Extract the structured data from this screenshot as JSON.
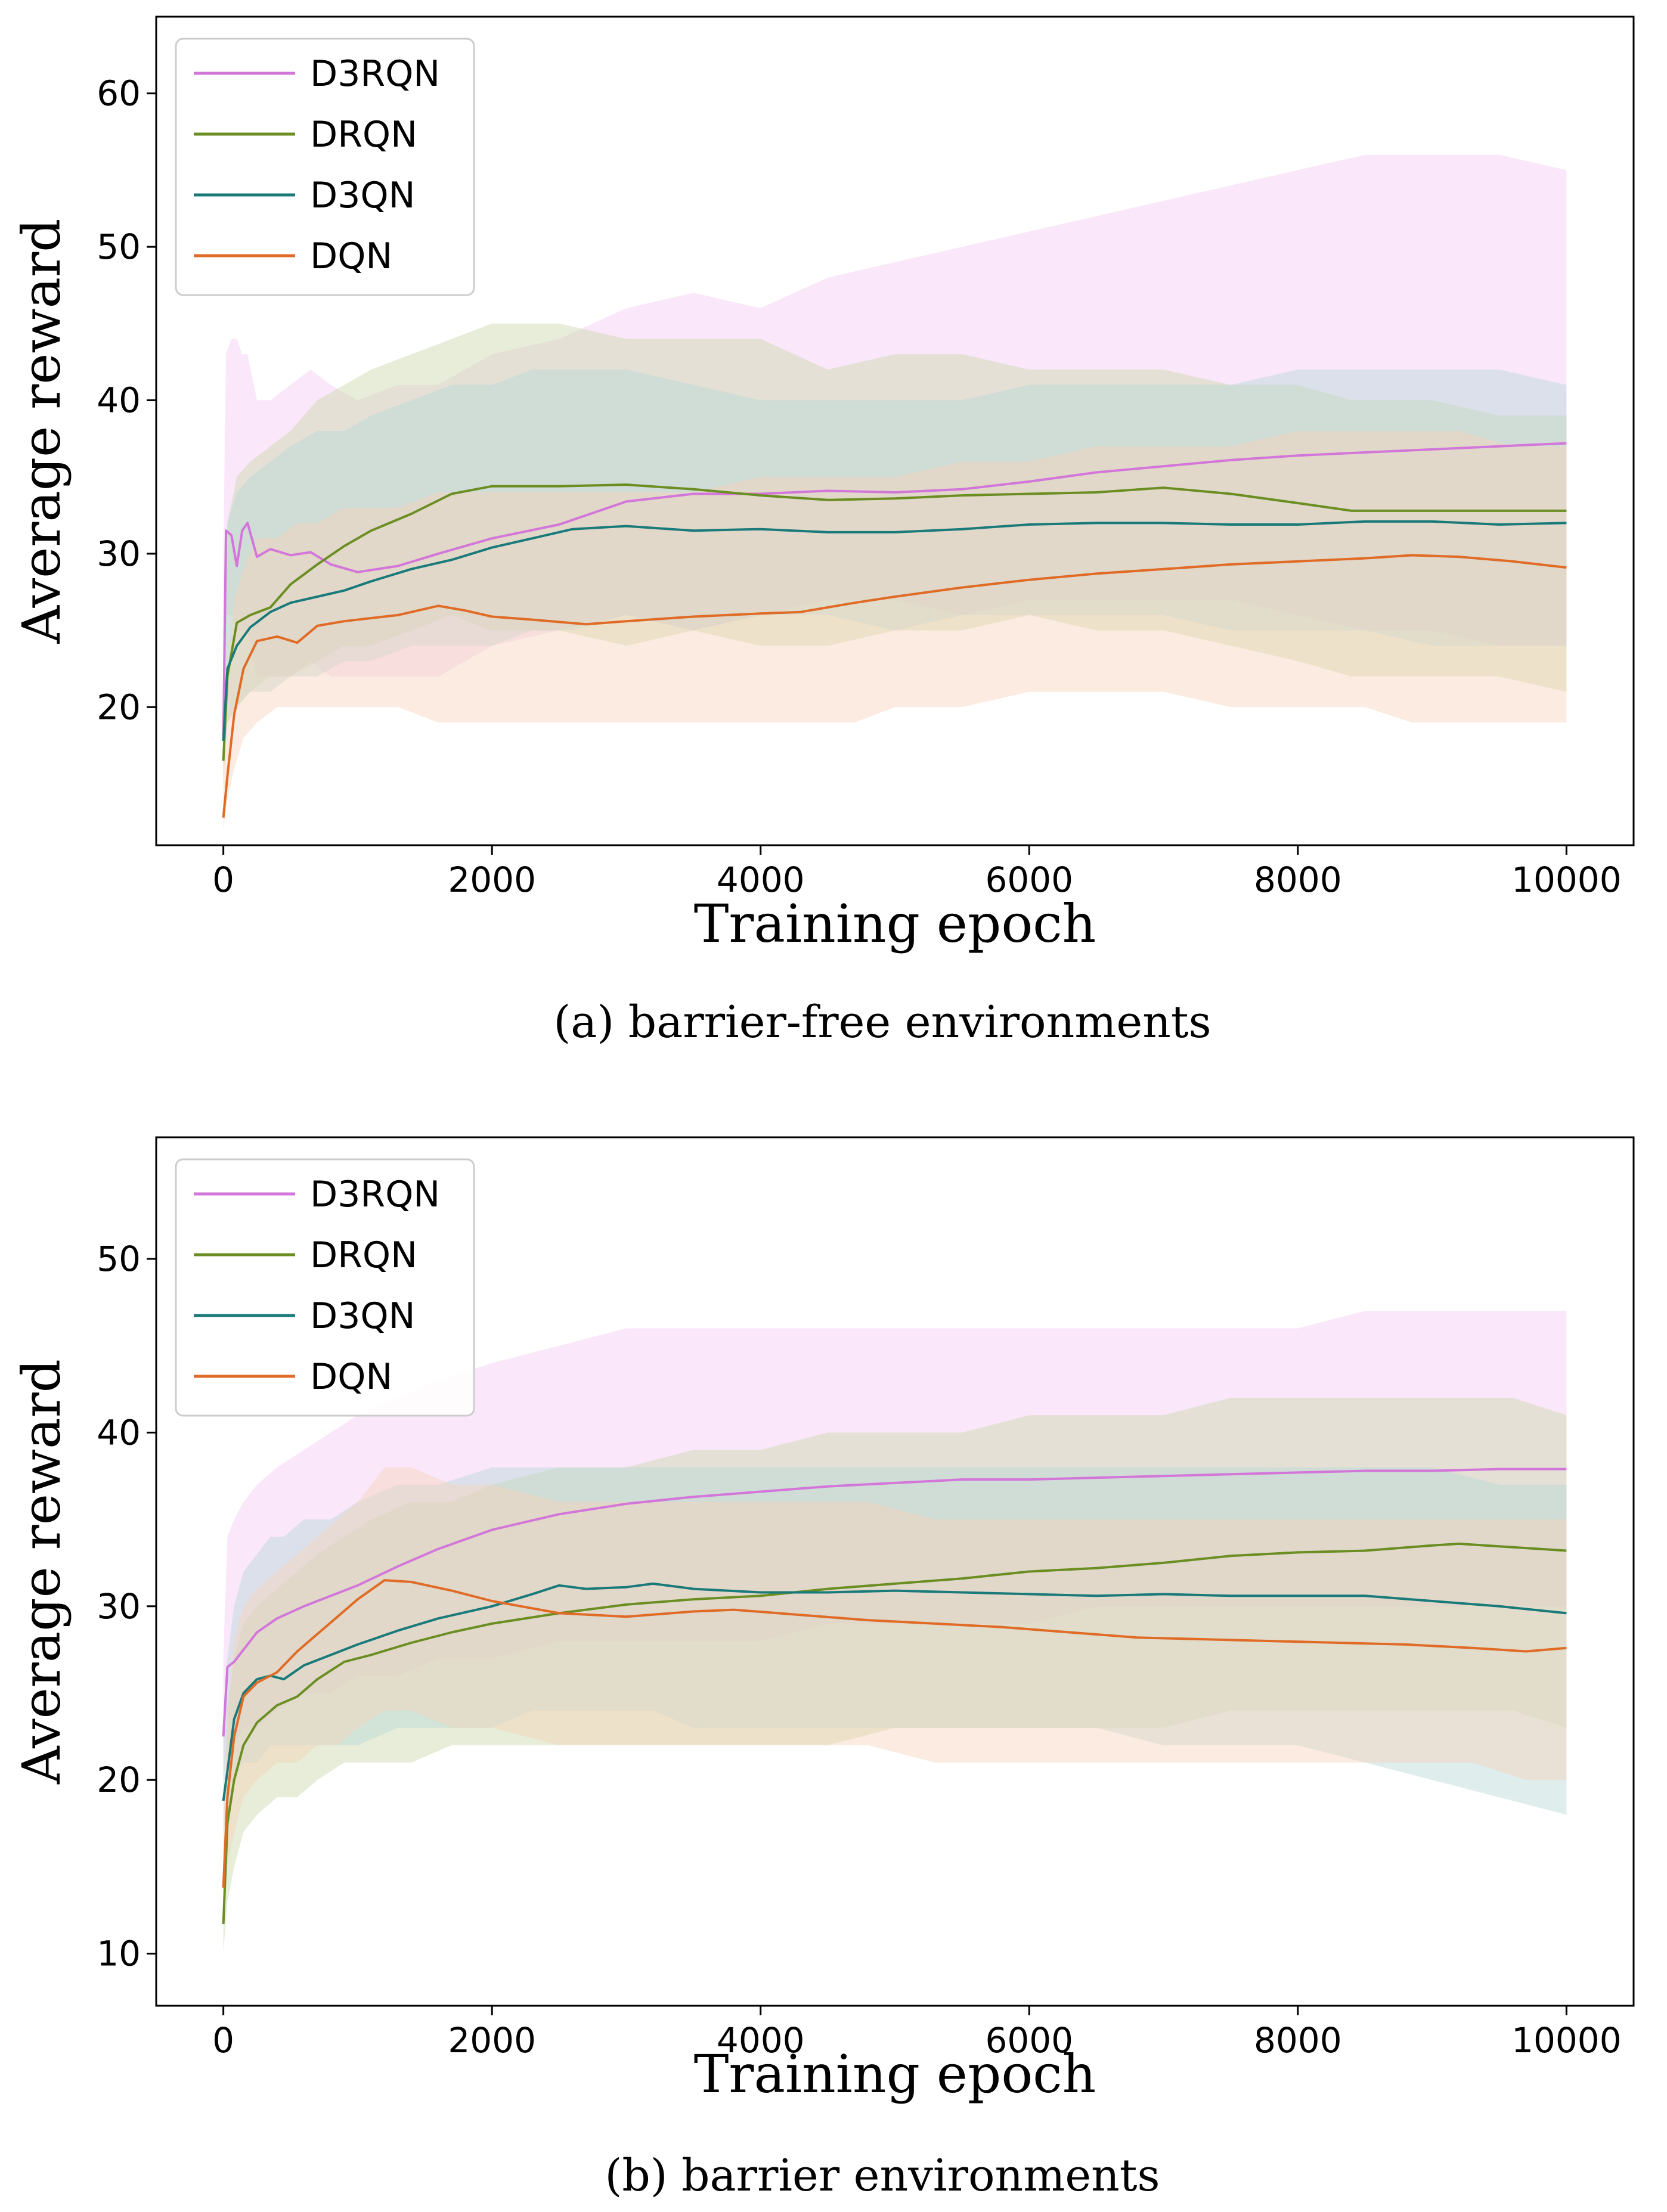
{
  "chart_data": [
    {
      "type": "line",
      "id": "a",
      "title": "",
      "caption": "(a) barrier-free environments",
      "xlabel": "Training epoch",
      "ylabel": "Average reward",
      "xlim": [
        -500,
        10500
      ],
      "ylim": [
        11,
        65
      ],
      "xticks": [
        0,
        2000,
        4000,
        6000,
        8000,
        10000
      ],
      "yticks": [
        20,
        30,
        40,
        50,
        60
      ],
      "legend_position": "top-left",
      "series": [
        {
          "name": "D3RQN",
          "color": "#d376d9",
          "band_color": "#f3c9f2",
          "x": [
            0,
            20,
            60,
            100,
            140,
            180,
            250,
            350,
            500,
            650,
            800,
            1000,
            1300,
            1600,
            2000,
            2500,
            3000,
            3500,
            4000,
            4500,
            5000,
            5500,
            6000,
            6500,
            7000,
            7500,
            8000,
            8500,
            9000,
            9500,
            10000
          ],
          "values": [
            18,
            31.5,
            31.2,
            29.2,
            31.5,
            32.0,
            29.8,
            30.3,
            29.9,
            30.1,
            29.3,
            28.8,
            29.2,
            30.0,
            31.0,
            31.9,
            33.4,
            33.9,
            33.9,
            34.1,
            34.0,
            34.2,
            34.7,
            35.3,
            35.7,
            36.1,
            36.4,
            36.6,
            36.8,
            37.0,
            37.2
          ],
          "band_low": [
            17,
            26,
            26,
            25,
            25,
            25,
            22,
            22,
            22,
            23,
            22,
            22,
            22,
            22,
            24,
            25,
            26,
            25,
            26,
            27,
            27,
            26,
            27,
            27,
            27,
            27,
            26,
            25,
            25,
            24,
            24
          ],
          "band_high": [
            30,
            43,
            44,
            44,
            43,
            43,
            40,
            40,
            41,
            42,
            41,
            40,
            41,
            41,
            43,
            44,
            46,
            47,
            46,
            48,
            49,
            50,
            51,
            52,
            53,
            54,
            55,
            56,
            56,
            56,
            55
          ]
        },
        {
          "name": "DRQN",
          "color": "#6b8e23",
          "band_color": "#c9d7a8",
          "x": [
            0,
            30,
            100,
            200,
            350,
            500,
            700,
            900,
            1100,
            1400,
            1700,
            2000,
            2500,
            3000,
            3500,
            4000,
            4500,
            5000,
            5500,
            6000,
            6500,
            7000,
            7500,
            8000,
            8400,
            9000,
            9500,
            10000
          ],
          "values": [
            16.5,
            22,
            25.5,
            26,
            26.5,
            28,
            29.3,
            30.5,
            31.5,
            32.6,
            33.9,
            34.4,
            34.4,
            34.5,
            34.2,
            33.8,
            33.5,
            33.6,
            33.8,
            33.9,
            34.0,
            34.3,
            33.9,
            33.3,
            32.8,
            32.8,
            32.8,
            32.8
          ],
          "band_low": [
            15,
            19,
            20,
            21,
            22,
            22,
            23,
            24,
            24,
            25,
            26,
            25,
            25,
            24,
            25,
            24,
            24,
            25,
            25,
            26,
            25,
            25,
            24,
            23,
            22,
            22,
            22,
            21
          ],
          "band_high": [
            22,
            32,
            35,
            36,
            37,
            38,
            40,
            41,
            42,
            43,
            44,
            45,
            45,
            44,
            44,
            44,
            42,
            43,
            43,
            42,
            42,
            42,
            41,
            41,
            40,
            40,
            39,
            39
          ]
        },
        {
          "name": "D3QN",
          "color": "#1a7a7a",
          "band_color": "#b7d8d6",
          "x": [
            0,
            30,
            100,
            200,
            350,
            500,
            700,
            900,
            1100,
            1400,
            1700,
            2000,
            2300,
            2600,
            3000,
            3500,
            4000,
            4500,
            5000,
            5500,
            6000,
            6500,
            7000,
            7500,
            8000,
            8500,
            9000,
            9500,
            10000
          ],
          "values": [
            17.8,
            22.5,
            24.0,
            25.2,
            26.2,
            26.8,
            27.2,
            27.6,
            28.2,
            29.0,
            29.6,
            30.4,
            31.0,
            31.6,
            31.8,
            31.5,
            31.6,
            31.4,
            31.4,
            31.6,
            31.9,
            32.0,
            32.0,
            31.9,
            31.9,
            32.1,
            32.1,
            31.9,
            32.0
          ],
          "band_low": [
            16,
            19,
            20,
            21,
            21,
            22,
            22,
            23,
            23,
            24,
            24,
            24,
            25,
            25,
            26,
            25,
            26,
            26,
            25,
            26,
            26,
            26,
            26,
            25,
            25,
            25,
            24,
            24,
            24
          ],
          "band_high": [
            25,
            32,
            34,
            35,
            36,
            37,
            38,
            38,
            39,
            40,
            41,
            41,
            42,
            42,
            42,
            41,
            40,
            40,
            40,
            40,
            41,
            41,
            41,
            41,
            42,
            42,
            42,
            42,
            41
          ]
        },
        {
          "name": "DQN",
          "color": "#e06b26",
          "band_color": "#f6d2bb",
          "x": [
            0,
            30,
            80,
            150,
            250,
            400,
            550,
            700,
            900,
            1100,
            1300,
            1600,
            1800,
            2000,
            2300,
            2700,
            3000,
            3500,
            4000,
            4300,
            4700,
            5000,
            5500,
            6000,
            6500,
            7000,
            7500,
            8000,
            8500,
            8850,
            9200,
            9600,
            10000
          ],
          "values": [
            12.8,
            15.5,
            19.5,
            22.5,
            24.3,
            24.6,
            24.2,
            25.3,
            25.6,
            25.8,
            26.0,
            26.6,
            26.3,
            25.9,
            25.7,
            25.4,
            25.6,
            25.9,
            26.1,
            26.2,
            26.8,
            27.2,
            27.8,
            28.3,
            28.7,
            29.0,
            29.3,
            29.5,
            29.7,
            29.9,
            29.8,
            29.5,
            29.1
          ],
          "band_low": [
            12,
            14,
            16,
            18,
            19,
            20,
            20,
            20,
            20,
            20,
            20,
            19,
            19,
            19,
            19,
            19,
            19,
            19,
            19,
            19,
            19,
            20,
            20,
            21,
            21,
            21,
            20,
            20,
            20,
            19,
            19,
            19,
            19
          ],
          "band_high": [
            17,
            22,
            27,
            29,
            31,
            31,
            32,
            32,
            33,
            33,
            33,
            34,
            34,
            34,
            34,
            34,
            34,
            34,
            35,
            35,
            35,
            35,
            36,
            36,
            37,
            37,
            37,
            38,
            38,
            38,
            38,
            37,
            37
          ]
        }
      ]
    },
    {
      "type": "line",
      "id": "b",
      "title": "",
      "caption": "(b) barrier environments",
      "xlabel": "Training epoch",
      "ylabel": "Average reward",
      "xlim": [
        -500,
        10500
      ],
      "ylim": [
        7,
        57
      ],
      "xticks": [
        0,
        2000,
        4000,
        6000,
        8000,
        10000
      ],
      "yticks": [
        10,
        20,
        30,
        40,
        50
      ],
      "legend_position": "top-left",
      "series": [
        {
          "name": "D3RQN",
          "color": "#d376d9",
          "band_color": "#f3c9f2",
          "x": [
            0,
            30,
            80,
            150,
            250,
            400,
            600,
            800,
            1000,
            1300,
            1600,
            2000,
            2500,
            3000,
            3500,
            4000,
            4500,
            5000,
            5500,
            6000,
            6500,
            7000,
            7500,
            8000,
            8500,
            9000,
            9500,
            10000
          ],
          "values": [
            22.5,
            26.5,
            26.8,
            27.5,
            28.5,
            29.3,
            30.0,
            30.6,
            31.2,
            32.3,
            33.3,
            34.4,
            35.3,
            35.9,
            36.3,
            36.6,
            36.9,
            37.1,
            37.3,
            37.3,
            37.4,
            37.5,
            37.6,
            37.7,
            37.8,
            37.8,
            37.9,
            37.9
          ],
          "band_low": [
            20,
            22,
            22,
            23,
            23,
            24,
            25,
            25,
            26,
            26,
            27,
            27,
            28,
            28,
            28,
            28,
            29,
            29,
            29,
            29,
            30,
            30,
            30,
            30,
            30,
            30,
            30,
            30
          ],
          "band_high": [
            27,
            34,
            35,
            36,
            37,
            38,
            39,
            40,
            41,
            42,
            43,
            44,
            45,
            46,
            46,
            46,
            46,
            46,
            46,
            46,
            46,
            46,
            46,
            46,
            47,
            47,
            47,
            47
          ]
        },
        {
          "name": "DRQN",
          "color": "#6b8e23",
          "band_color": "#c9d7a8",
          "x": [
            0,
            30,
            80,
            150,
            250,
            400,
            550,
            700,
            900,
            1100,
            1400,
            1700,
            2000,
            2500,
            3000,
            3500,
            4000,
            4500,
            5000,
            5500,
            6000,
            6500,
            7000,
            7500,
            8000,
            8500,
            9000,
            9200,
            9600,
            10000
          ],
          "values": [
            11.7,
            17.5,
            20.0,
            22.0,
            23.3,
            24.3,
            24.8,
            25.8,
            26.8,
            27.2,
            27.9,
            28.5,
            29.0,
            29.6,
            30.1,
            30.4,
            30.6,
            31.0,
            31.3,
            31.6,
            32.0,
            32.2,
            32.5,
            32.9,
            33.1,
            33.2,
            33.5,
            33.6,
            33.4,
            33.2
          ],
          "band_low": [
            10,
            13,
            15,
            17,
            18,
            19,
            19,
            20,
            21,
            21,
            21,
            22,
            22,
            22,
            22,
            22,
            22,
            22,
            23,
            23,
            23,
            23,
            23,
            24,
            24,
            24,
            24,
            24,
            24,
            23
          ],
          "band_high": [
            15,
            24,
            27,
            29,
            30,
            31,
            32,
            33,
            34,
            35,
            36,
            36,
            37,
            38,
            38,
            39,
            39,
            40,
            40,
            40,
            41,
            41,
            41,
            42,
            42,
            42,
            42,
            42,
            42,
            41
          ]
        },
        {
          "name": "D3QN",
          "color": "#1a7a7a",
          "band_color": "#b7d8d6",
          "x": [
            0,
            30,
            80,
            150,
            250,
            350,
            450,
            600,
            800,
            1000,
            1300,
            1600,
            2000,
            2300,
            2500,
            2700,
            3000,
            3200,
            3500,
            4000,
            4500,
            5000,
            5500,
            6000,
            6500,
            7000,
            7500,
            8000,
            8500,
            9000,
            9500,
            10000
          ],
          "values": [
            18.8,
            20.5,
            23.5,
            25.0,
            25.8,
            26.0,
            25.8,
            26.6,
            27.2,
            27.8,
            28.6,
            29.3,
            30.0,
            30.7,
            31.2,
            31.0,
            31.1,
            31.3,
            31.0,
            30.8,
            30.8,
            30.9,
            30.8,
            30.7,
            30.6,
            30.7,
            30.6,
            30.6,
            30.6,
            30.3,
            30.0,
            29.6
          ],
          "band_low": [
            17,
            18,
            20,
            21,
            21,
            22,
            22,
            22,
            22,
            22,
            23,
            23,
            23,
            24,
            24,
            24,
            24,
            24,
            23,
            23,
            23,
            23,
            23,
            23,
            23,
            22,
            22,
            22,
            21,
            20,
            19,
            18
          ],
          "band_high": [
            23,
            27,
            30,
            32,
            33,
            34,
            34,
            35,
            35,
            36,
            37,
            37,
            38,
            38,
            38,
            38,
            38,
            38,
            38,
            38,
            38,
            38,
            38,
            38,
            38,
            38,
            38,
            38,
            38,
            38,
            37,
            37
          ]
        },
        {
          "name": "DQN",
          "color": "#e06b26",
          "band_color": "#f6d2bb",
          "x": [
            0,
            30,
            80,
            150,
            250,
            400,
            550,
            700,
            850,
            1000,
            1200,
            1400,
            1700,
            2000,
            2500,
            3000,
            3500,
            3800,
            4300,
            4800,
            5300,
            5800,
            6300,
            6800,
            7300,
            7800,
            8300,
            8800,
            9300,
            9700,
            10000
          ],
          "values": [
            13.8,
            19.0,
            22.5,
            24.8,
            25.6,
            26.2,
            27.4,
            28.4,
            29.4,
            30.4,
            31.5,
            31.4,
            30.9,
            30.3,
            29.6,
            29.4,
            29.7,
            29.8,
            29.5,
            29.2,
            29.0,
            28.8,
            28.5,
            28.2,
            28.1,
            28.0,
            27.9,
            27.8,
            27.6,
            27.4,
            27.6
          ],
          "band_low": [
            12,
            15,
            17,
            19,
            20,
            21,
            21,
            22,
            22,
            23,
            24,
            24,
            23,
            23,
            22,
            22,
            22,
            22,
            22,
            22,
            21,
            21,
            21,
            21,
            21,
            21,
            21,
            21,
            21,
            20,
            20
          ],
          "band_high": [
            17,
            24,
            28,
            30,
            31,
            32,
            33,
            34,
            35,
            36,
            38,
            38,
            37,
            37,
            36,
            36,
            36,
            36,
            36,
            36,
            35,
            35,
            35,
            35,
            35,
            35,
            35,
            35,
            35,
            35,
            35
          ]
        }
      ]
    }
  ]
}
